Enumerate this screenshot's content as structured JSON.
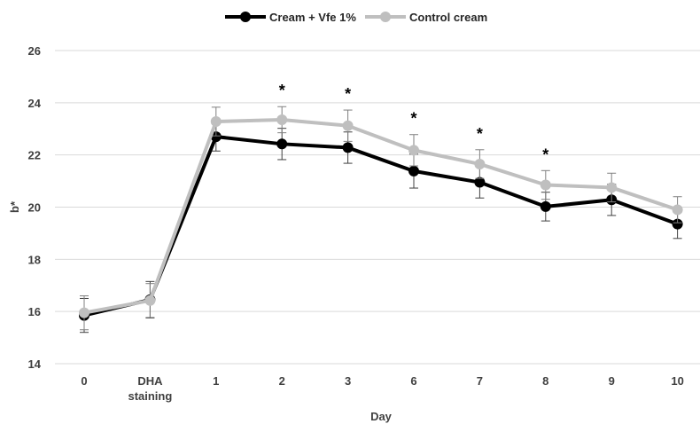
{
  "chart_data": {
    "type": "line",
    "categories": [
      "0",
      "DHA\nstaining",
      "1",
      "2",
      "3",
      "6",
      "7",
      "8",
      "9",
      "10"
    ],
    "xlabel": "Day",
    "ylabel": "b*",
    "ylim": [
      14,
      26
    ],
    "yticks": [
      14,
      16,
      18,
      20,
      22,
      24,
      26
    ],
    "grid": "horizontal",
    "legend_position": "top-center",
    "series": [
      {
        "name": "Cream + Vfe 1%",
        "color": "#000000",
        "values": [
          15.85,
          16.45,
          22.7,
          22.42,
          22.28,
          21.38,
          20.95,
          20.02,
          20.28,
          19.35
        ],
        "errors": [
          0.65,
          0.7,
          0.55,
          0.6,
          0.6,
          0.65,
          0.6,
          0.55,
          0.6,
          0.55
        ]
      },
      {
        "name": "Control cream",
        "color": "#bfbfbf",
        "values": [
          15.95,
          16.42,
          23.28,
          23.35,
          23.12,
          22.18,
          21.65,
          20.85,
          20.75,
          19.9
        ],
        "errors": [
          0.65,
          0.65,
          0.55,
          0.5,
          0.6,
          0.6,
          0.55,
          0.55,
          0.55,
          0.5
        ]
      }
    ],
    "significance_marks": [
      "",
      "",
      "",
      "*",
      "*",
      "*",
      "*",
      "*",
      "",
      ""
    ]
  }
}
